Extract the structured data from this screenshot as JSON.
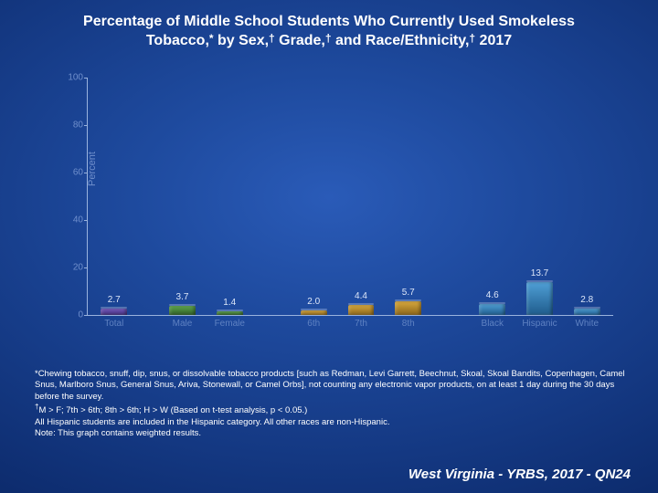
{
  "title_line1": "Percentage of Middle School Students Who Currently Used Smokeless",
  "title_line2_a": "Tobacco,",
  "title_line2_b": " by Sex,",
  "title_line2_c": " Grade,",
  "title_line2_d": " and Race/Ethnicity,",
  "title_line2_e": " 2017",
  "sup_star": "*",
  "sup_dag": "†",
  "chart": {
    "type": "bar",
    "y_axis_label": "Percent",
    "ylim": [
      0,
      100
    ],
    "ytick_step": 20,
    "yticks": [
      0,
      20,
      40,
      60,
      80,
      100
    ],
    "tick_color": "#9ab3de",
    "tick_label_color": "#6f8fcc",
    "value_label_color": "#dce6f8",
    "cat_label_color": "#5f82c2",
    "bars": [
      {
        "label": "Total",
        "value": 2.7,
        "color_top": "#7a5cc5",
        "color_bot": "#3e2b75",
        "x_pct": 5
      },
      {
        "label": "Male",
        "value": 3.7,
        "color_top": "#5fa84f",
        "color_bot": "#2e5c25",
        "x_pct": 18
      },
      {
        "label": "Female",
        "value": 1.4,
        "color_top": "#5fa84f",
        "color_bot": "#2e5c25",
        "x_pct": 27
      },
      {
        "label": "6th",
        "value": 2.0,
        "color_top": "#d9a93e",
        "color_bot": "#8a651a",
        "x_pct": 43
      },
      {
        "label": "7th",
        "value": 4.4,
        "color_top": "#d9a93e",
        "color_bot": "#8a651a",
        "x_pct": 52
      },
      {
        "label": "8th",
        "value": 5.7,
        "color_top": "#d9a93e",
        "color_bot": "#8a651a",
        "x_pct": 61
      },
      {
        "label": "Black",
        "value": 4.6,
        "color_top": "#4f9fd6",
        "color_bot": "#1f5c8c",
        "x_pct": 77
      },
      {
        "label": "Hispanic",
        "value": 13.7,
        "color_top": "#4f9fd6",
        "color_bot": "#1f5c8c",
        "x_pct": 86
      },
      {
        "label": "White",
        "value": 2.8,
        "color_top": "#4f9fd6",
        "color_bot": "#1f5c8c",
        "x_pct": 95
      }
    ],
    "bar_width_pct": 5.0
  },
  "footnote1": "*Chewing tobacco, snuff, dip, snus, or dissolvable tobacco products [such as Redman, Levi Garrett, Beechnut, Skoal, Skoal Bandits, Copenhagen, Camel Snus, Marlboro Snus, General Snus, Ariva, Stonewall, or Camel Orbs], not counting any electronic vapor products, on at least 1 day during the 30 days before the survey.",
  "footnote2": "†M > F; 7th > 6th; 8th > 6th; H > W (Based on t-test analysis, p < 0.05.)",
  "footnote3": "All Hispanic students are included in the Hispanic category.  All other races are non-Hispanic.",
  "footnote4": "Note: This graph contains weighted results.",
  "footer": "West Virginia - YRBS, 2017 - QN24"
}
